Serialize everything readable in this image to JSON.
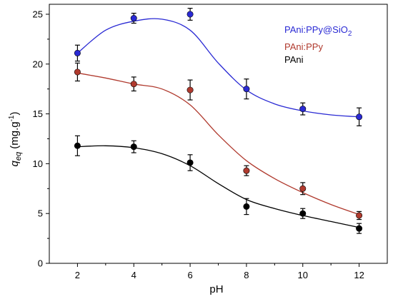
{
  "chart_data": {
    "type": "scatter",
    "title": "",
    "xlabel": "pH",
    "ylabel": {
      "main": "q",
      "sub": "eq",
      "units_prefix": " (mg.g",
      "units_sup": "-1",
      "units_suffix": ")"
    },
    "xlim": [
      1,
      13
    ],
    "ylim": [
      0,
      26
    ],
    "xticks": [
      2,
      4,
      6,
      8,
      10,
      12
    ],
    "yticks": [
      0,
      5,
      10,
      15,
      20,
      25
    ],
    "grid": false,
    "legend_position": "top-right",
    "series": [
      {
        "name": "PAni:PPy@SiO",
        "name_sub": "2",
        "color": "#2a2ad4",
        "x": [
          2,
          4,
          6,
          8,
          10,
          12
        ],
        "y": [
          21.1,
          24.6,
          25.0,
          17.5,
          15.5,
          14.7
        ],
        "error": [
          0.8,
          0.5,
          0.6,
          1.0,
          0.6,
          0.9
        ],
        "fit": [
          [
            2,
            21.1
          ],
          [
            3,
            23.4
          ],
          [
            4,
            24.3
          ],
          [
            5,
            24.5
          ],
          [
            6,
            23.4
          ],
          [
            7,
            20.1
          ],
          [
            8,
            17.4
          ],
          [
            9,
            16.0
          ],
          [
            10,
            15.3
          ],
          [
            11,
            14.9
          ],
          [
            12,
            14.7
          ]
        ]
      },
      {
        "name": "PAni:PPy",
        "color": "#b03a2e",
        "x": [
          2,
          4,
          6,
          8,
          10,
          12
        ],
        "y": [
          19.2,
          18.0,
          17.4,
          9.3,
          7.5,
          4.8
        ],
        "error": [
          0.9,
          0.7,
          1.0,
          0.5,
          0.6,
          0.4
        ],
        "fit": [
          [
            2,
            19.1
          ],
          [
            3,
            18.6
          ],
          [
            4,
            18.0
          ],
          [
            5,
            17.5
          ],
          [
            6,
            15.9
          ],
          [
            7,
            12.9
          ],
          [
            8,
            10.3
          ],
          [
            9,
            8.5
          ],
          [
            10,
            7.1
          ],
          [
            11,
            5.9
          ],
          [
            12,
            4.9
          ]
        ]
      },
      {
        "name": "PAni",
        "color": "#000000",
        "x": [
          2,
          4,
          6,
          8,
          10,
          12
        ],
        "y": [
          11.8,
          11.7,
          10.1,
          5.7,
          5.0,
          3.5
        ],
        "error": [
          1.0,
          0.6,
          0.8,
          0.8,
          0.5,
          0.5
        ],
        "fit": [
          [
            2,
            11.7
          ],
          [
            3,
            11.8
          ],
          [
            4,
            11.6
          ],
          [
            5,
            11.0
          ],
          [
            6,
            9.8
          ],
          [
            7,
            8.0
          ],
          [
            8,
            6.4
          ],
          [
            9,
            5.5
          ],
          [
            10,
            4.8
          ],
          [
            11,
            4.2
          ],
          [
            12,
            3.6
          ]
        ]
      }
    ]
  }
}
